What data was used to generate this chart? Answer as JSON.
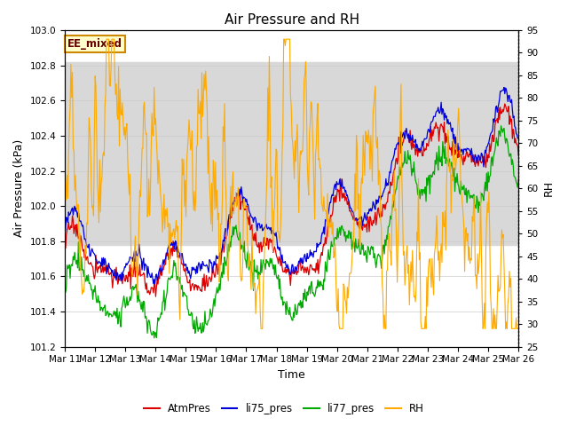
{
  "title": "Air Pressure and RH",
  "xlabel": "Time",
  "ylabel_left": "Air Pressure (kPa)",
  "ylabel_right": "RH",
  "ylim_left": [
    101.2,
    103.0
  ],
  "ylim_right": [
    25,
    95
  ],
  "yticks_left": [
    101.2,
    101.4,
    101.6,
    101.8,
    102.0,
    102.2,
    102.4,
    102.6,
    102.8,
    103.0
  ],
  "yticks_right": [
    25,
    30,
    35,
    40,
    45,
    50,
    55,
    60,
    65,
    70,
    75,
    80,
    85,
    90,
    95
  ],
  "xtick_labels": [
    "Mar 11",
    "Mar 12",
    "Mar 13",
    "Mar 14",
    "Mar 15",
    "Mar 16",
    "Mar 17",
    "Mar 18",
    "Mar 19",
    "Mar 20",
    "Mar 21",
    "Mar 22",
    "Mar 23",
    "Mar 24",
    "Mar 25",
    "Mar 26"
  ],
  "n_points": 600,
  "n_days": 15,
  "colors": {
    "AtmPres": "#dd0000",
    "li75_pres": "#0000dd",
    "li77_pres": "#00aa00",
    "RH": "#ffaa00"
  },
  "annotation_text": "EE_mixed",
  "annotation_color": "#660000",
  "annotation_bg": "#ffffcc",
  "annotation_border": "#cc8800",
  "bg_band_color": "#d8d8d8",
  "bg_band_ylim": [
    101.78,
    102.82
  ],
  "title_fontsize": 11,
  "axis_label_fontsize": 9,
  "tick_fontsize": 7.5,
  "legend_fontsize": 8.5
}
